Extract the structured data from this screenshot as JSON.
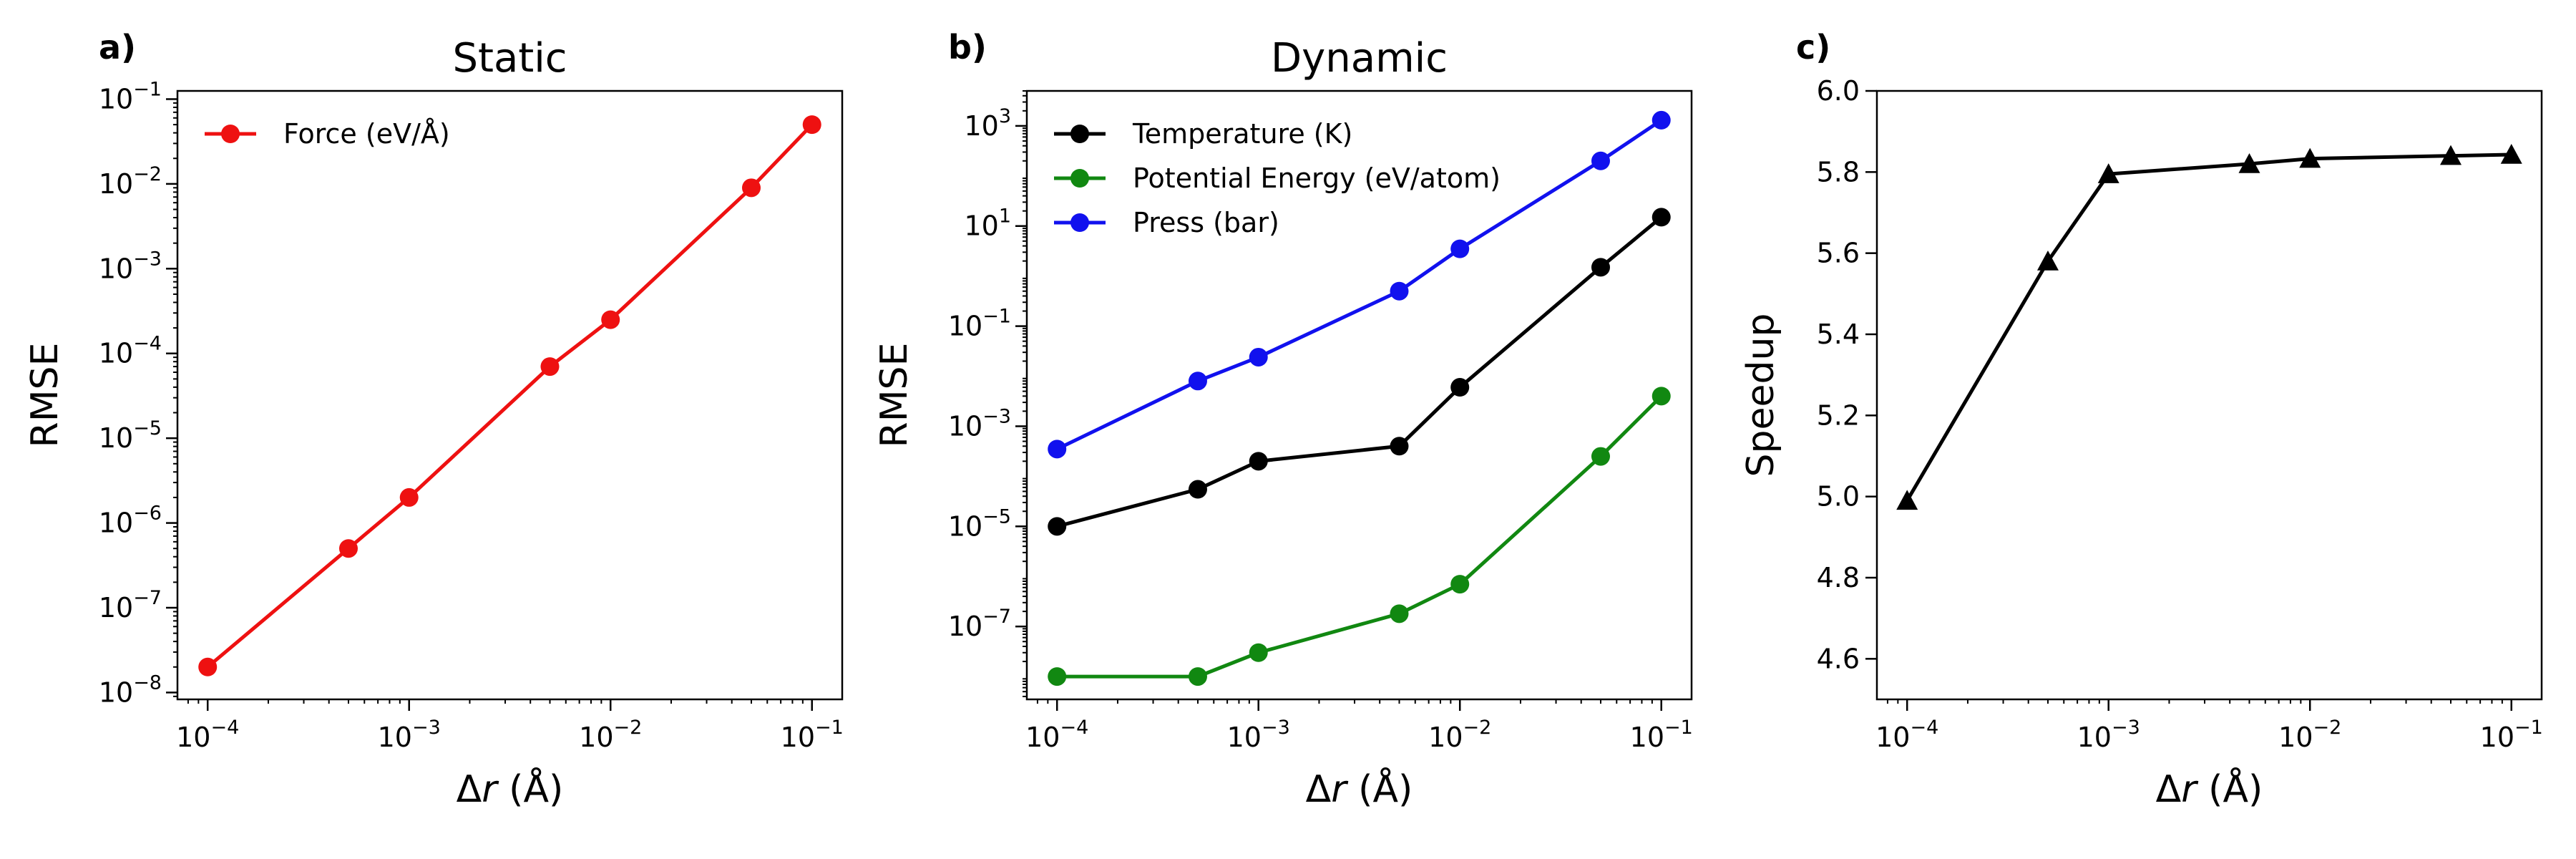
{
  "chart_data": [
    {
      "type": "line",
      "panel_label": "a)",
      "title": "Static",
      "xlabel_prefix": "Δ",
      "xlabel_var": "r",
      "xlabel_suffix": " (Å)",
      "ylabel": "RMSE",
      "xscale": "log",
      "yscale": "log",
      "xlim": [
        7.08e-05,
        0.1413
      ],
      "ylim": [
        8.3e-09,
        0.125
      ],
      "xticks": [
        {
          "base": "10",
          "exp": "−4"
        },
        {
          "base": "10",
          "exp": "−3"
        },
        {
          "base": "10",
          "exp": "−2"
        },
        {
          "base": "10",
          "exp": "−1"
        }
      ],
      "yticks": [
        {
          "base": "10",
          "exp": "−8"
        },
        {
          "base": "10",
          "exp": "−7"
        },
        {
          "base": "10",
          "exp": "−6"
        },
        {
          "base": "10",
          "exp": "−5"
        },
        {
          "base": "10",
          "exp": "−4"
        },
        {
          "base": "10",
          "exp": "−3"
        },
        {
          "base": "10",
          "exp": "−2"
        },
        {
          "base": "10",
          "exp": "−1"
        }
      ],
      "legend": "top-left",
      "grid": false,
      "series": [
        {
          "name": "Force (eV/Å)",
          "color": "#ee1111",
          "marker": "circle",
          "x": [
            0.0001,
            0.0005,
            0.001,
            0.005,
            0.01,
            0.05,
            0.1
          ],
          "y": [
            2e-08,
            5e-07,
            2e-06,
            7e-05,
            0.00025,
            0.009,
            0.05
          ]
        }
      ]
    },
    {
      "type": "line",
      "panel_label": "b)",
      "title": "Dynamic",
      "xlabel_prefix": "Δ",
      "xlabel_var": "r",
      "xlabel_suffix": " (Å)",
      "ylabel": "RMSE",
      "xscale": "log",
      "yscale": "log",
      "xlim": [
        7.08e-05,
        0.1413
      ],
      "ylim": [
        3.5e-09,
        5000
      ],
      "xticks": [
        {
          "base": "10",
          "exp": "−4"
        },
        {
          "base": "10",
          "exp": "−3"
        },
        {
          "base": "10",
          "exp": "−2"
        },
        {
          "base": "10",
          "exp": "−1"
        }
      ],
      "yticks": [
        {
          "base": "10",
          "exp": "−7"
        },
        {
          "base": "10",
          "exp": "−5"
        },
        {
          "base": "10",
          "exp": "−3"
        },
        {
          "base": "10",
          "exp": "−1"
        },
        {
          "base": "10",
          "exp": "1"
        },
        {
          "base": "10",
          "exp": "3"
        }
      ],
      "legend": "top-left",
      "grid": false,
      "series": [
        {
          "name": "Temperature (K)",
          "color": "#000000",
          "marker": "circle",
          "x": [
            0.0001,
            0.0005,
            0.001,
            0.005,
            0.01,
            0.05,
            0.1
          ],
          "y": [
            1e-05,
            5.5e-05,
            0.0002,
            0.0004,
            0.006,
            1.5,
            15
          ]
        },
        {
          "name": "Potential Energy (eV/atom)",
          "color": "#118811",
          "marker": "circle",
          "x": [
            0.0001,
            0.0005,
            0.001,
            0.005,
            0.01,
            0.05,
            0.1
          ],
          "y": [
            1e-08,
            1e-08,
            3e-08,
            1.8e-07,
            7e-07,
            0.00025,
            0.004
          ]
        },
        {
          "name": "Press (bar)",
          "color": "#1111ee",
          "marker": "circle",
          "x": [
            0.0001,
            0.0005,
            0.001,
            0.005,
            0.01,
            0.05,
            0.1
          ],
          "y": [
            0.00035,
            0.008,
            0.024,
            0.5,
            3.5,
            200,
            1300
          ]
        }
      ]
    },
    {
      "type": "line",
      "panel_label": "c)",
      "title": "",
      "xlabel_prefix": "Δ",
      "xlabel_var": "r",
      "xlabel_suffix": " (Å)",
      "ylabel": "Speedup",
      "xscale": "log",
      "yscale": "linear",
      "xlim": [
        7.08e-05,
        0.1413
      ],
      "ylim": [
        4.5,
        6.0
      ],
      "xticks": [
        {
          "base": "10",
          "exp": "−4"
        },
        {
          "base": "10",
          "exp": "−3"
        },
        {
          "base": "10",
          "exp": "−2"
        },
        {
          "base": "10",
          "exp": "−1"
        }
      ],
      "yticks": [
        "4.6",
        "4.8",
        "5.0",
        "5.2",
        "5.4",
        "5.6",
        "5.8",
        "6.0"
      ],
      "grid": false,
      "series": [
        {
          "color": "#000000",
          "marker": "triangle",
          "x": [
            0.0001,
            0.0005,
            0.001,
            0.005,
            0.01,
            0.05,
            0.1
          ],
          "y": [
            4.99,
            5.58,
            5.795,
            5.82,
            5.833,
            5.84,
            5.843
          ]
        }
      ]
    }
  ]
}
